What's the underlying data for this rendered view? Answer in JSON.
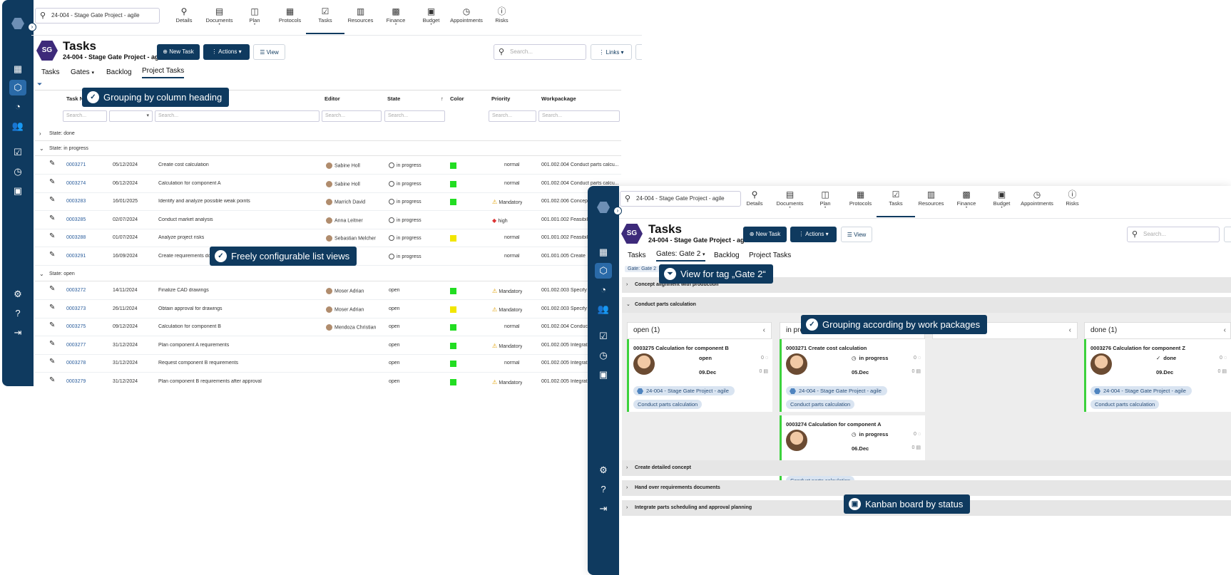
{
  "list": {
    "search_value": "24-004 - Stage Gate Project - agile",
    "nav": [
      {
        "label": "Details",
        "icon": "details-icon",
        "glyph": "⚲"
      },
      {
        "label": "Documents",
        "icon": "documents-icon",
        "glyph": "▤"
      },
      {
        "label": "Plan",
        "icon": "plan-icon",
        "glyph": "◫"
      },
      {
        "label": "Protocols",
        "icon": "protocols-icon",
        "glyph": "▦"
      },
      {
        "label": "Tasks",
        "icon": "tasks-icon",
        "glyph": "☑"
      },
      {
        "label": "Resources",
        "icon": "resources-icon",
        "glyph": "▥"
      },
      {
        "label": "Finance",
        "icon": "finance-icon",
        "glyph": "▩"
      },
      {
        "label": "Budget",
        "icon": "budget-icon",
        "glyph": "▣"
      },
      {
        "label": "Appointments",
        "icon": "appointments-icon",
        "glyph": "◷"
      },
      {
        "label": "Risks",
        "icon": "risks-icon",
        "glyph": "ⓘ"
      }
    ],
    "badge": "SG",
    "title": "Tasks",
    "subtitle": "24-004 - Stage Gate Project - agile",
    "new_task": "New Task",
    "actions": "Actions",
    "view": "View",
    "search_placeholder": "Search...",
    "links": "Links",
    "tabs": [
      "Tasks",
      "Gates",
      "Backlog",
      "Project Tasks"
    ],
    "headers": {
      "task": "Task N",
      "editor": "Editor",
      "state": "State",
      "color": "Color",
      "priority": "Priority",
      "workpackage": "Workpackage"
    },
    "filter_placeholder": "Search...",
    "group_done": "State: done",
    "group_progress": "State: in progress",
    "group_open": "State: open",
    "rows": [
      {
        "id": "0003271",
        "date": "05/12/2024",
        "name": "Create cost calculation",
        "editor": "Sabine Holl",
        "state": "in progress",
        "color": "#22dd22",
        "priority": "normal",
        "wp": "001.002.004 Conduct parts calcu..."
      },
      {
        "id": "0003274",
        "date": "06/12/2024",
        "name": "Calculation for component A",
        "editor": "Sabine Holl",
        "state": "in progress",
        "color": "#22dd22",
        "priority": "normal",
        "wp": "001.002.004 Conduct parts calcu..."
      },
      {
        "id": "0003283",
        "date": "16/01/2025",
        "name": "Identify and analyze possible weak points",
        "editor": "Marrich David",
        "state": "in progress",
        "color": "#22dd22",
        "priority": "Mandatory",
        "wp": "001.002.006 Concep"
      },
      {
        "id": "0003285",
        "date": "02/07/2024",
        "name": "Conduct market analysis",
        "editor": "Anna Leitner",
        "state": "in progress",
        "color": "",
        "priority": "high",
        "wp": "001.001.002 Feasibil"
      },
      {
        "id": "0003288",
        "date": "01/07/2024",
        "name": "Analyze project risks",
        "editor": "Sebastian Melcher",
        "state": "in progress",
        "color": "#f2e600",
        "priority": "normal",
        "wp": "001.001.002 Feasibil"
      },
      {
        "id": "0003291",
        "date": "16/09/2024",
        "name": "Create requirements do",
        "editor": "an",
        "state": "in progress",
        "color": "",
        "priority": "normal",
        "wp": "001.001.005 Create"
      },
      {
        "id": "0003272",
        "date": "14/11/2024",
        "name": "Finalize CAD drawings",
        "editor": "Moser Adrian",
        "state": "open",
        "color": "#22dd22",
        "priority": "Mandatory",
        "wp": "001.002.003 Specify"
      },
      {
        "id": "0003273",
        "date": "26/11/2024",
        "name": "Obtain approval for drawings",
        "editor": "Moser Adrian",
        "state": "open",
        "color": "#f2e600",
        "priority": "Mandatory",
        "wp": "001.002.003 Specify"
      },
      {
        "id": "0003275",
        "date": "09/12/2024",
        "name": "Calculation for component B",
        "editor": "Mendoza Christian",
        "state": "open",
        "color": "#22dd22",
        "priority": "normal",
        "wp": "001.002.004 Conduc"
      },
      {
        "id": "0003277",
        "date": "31/12/2024",
        "name": "Plan component A requirements",
        "editor": "",
        "state": "open",
        "color": "#22dd22",
        "priority": "Mandatory",
        "wp": "001.002.005 Integrat"
      },
      {
        "id": "0003278",
        "date": "31/12/2024",
        "name": "Request component B requirements",
        "editor": "",
        "state": "open",
        "color": "#22dd22",
        "priority": "normal",
        "wp": "001.002.005 Integrat"
      },
      {
        "id": "0003279",
        "date": "31/12/2024",
        "name": "Plan component B requirements after approval",
        "editor": "",
        "state": "open",
        "color": "#22dd22",
        "priority": "Mandatory",
        "wp": "001.002.005 Integrat"
      }
    ],
    "callout_grouping": "Grouping by column heading",
    "callout_views": "Freely configurable list views"
  },
  "kanban": {
    "search_value": "24-004 - Stage Gate Project - agile",
    "badge": "SG",
    "title": "Tasks",
    "subtitle": "24-004 - Stage Gate Project - agile",
    "new_task": "New Task",
    "actions": "Actions",
    "view": "View",
    "search_placeholder": "Search...",
    "tabs": [
      "Tasks",
      "Gates: Gate 2",
      "Backlog",
      "Project Tasks"
    ],
    "filter_chip": "Gate: Gate 2",
    "bands": [
      "Concept alignment with production",
      "Conduct parts calculation",
      "Create detailed concept",
      "Hand over requirements documents",
      "Integrate parts scheduling and approval planning"
    ],
    "columns": [
      "open (1)",
      "in pro",
      "done (1)"
    ],
    "cards": [
      {
        "title": "0003275  Calculation for component B",
        "state": "open",
        "date": "09.Dec",
        "project": "24-004 - Stage Gate Project - agile",
        "wp": "Conduct parts calculation",
        "c1": "0",
        "c2": "0"
      },
      {
        "title": "0003271  Create cost calculation",
        "state": "in progress",
        "date": "05.Dec",
        "project": "24-004 - Stage Gate Project - agile",
        "wp": "Conduct parts calculation",
        "c1": "0",
        "c2": "0"
      },
      {
        "title": "0003274  Calculation for component A",
        "state": "in progress",
        "date": "06.Dec",
        "project": "24-004 - Stage Gate Project - agile",
        "wp": "Conduct parts calculation",
        "c1": "0",
        "c2": "0"
      },
      {
        "title": "0003276  Calculation for component Z",
        "state": "done",
        "date": "09.Dec",
        "project": "24-004 - Stage Gate Project - agile",
        "wp": "Conduct parts calculation",
        "c1": "0",
        "c2": "0"
      }
    ],
    "callout_tag": "View for tag „Gate 2“",
    "callout_wp": "Grouping according by work packages",
    "callout_kanban": "Kanban board by status"
  }
}
